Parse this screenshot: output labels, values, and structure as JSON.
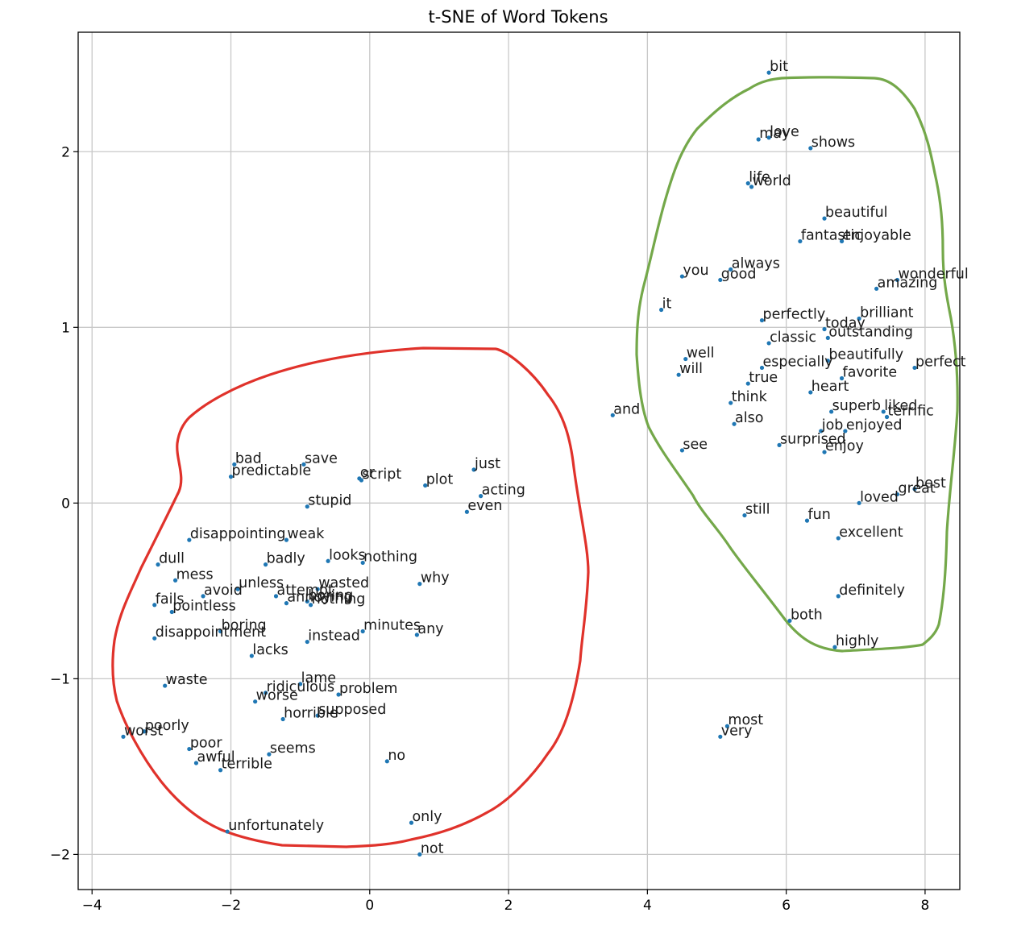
{
  "chart_data": {
    "type": "scatter",
    "title": "t-SNE of Word Tokens",
    "xlabel": "",
    "ylabel": "",
    "xlim": [
      -4.2,
      8.5
    ],
    "ylim": [
      -2.2,
      2.68
    ],
    "xticks": [
      -4,
      -2,
      0,
      2,
      4,
      6,
      8
    ],
    "yticks": [
      -2,
      -1,
      0,
      1,
      2
    ],
    "xtick_labels": [
      "−4",
      "−2",
      "0",
      "2",
      "4",
      "6",
      "8"
    ],
    "ytick_labels": [
      "−2",
      "−1",
      "0",
      "1",
      "2"
    ],
    "grid": true,
    "point_color": "#1f77b4",
    "annotations": [
      {
        "type": "freehand-loop",
        "color": "#e0322b",
        "encloses": "negative words"
      },
      {
        "type": "freehand-loop",
        "color": "#74a84a",
        "encloses": "positive words"
      }
    ],
    "points": [
      {
        "label": "bit",
        "x": 5.75,
        "y": 2.45
      },
      {
        "label": "love",
        "x": 5.75,
        "y": 2.08
      },
      {
        "label": "may",
        "x": 5.6,
        "y": 2.07
      },
      {
        "label": "shows",
        "x": 6.35,
        "y": 2.02
      },
      {
        "label": "life",
        "x": 5.45,
        "y": 1.82
      },
      {
        "label": "world",
        "x": 5.5,
        "y": 1.8
      },
      {
        "label": "beautiful",
        "x": 6.55,
        "y": 1.62
      },
      {
        "label": "fantastic",
        "x": 6.2,
        "y": 1.49
      },
      {
        "label": "enjoyable",
        "x": 6.8,
        "y": 1.49
      },
      {
        "label": "always",
        "x": 5.2,
        "y": 1.33
      },
      {
        "label": "you",
        "x": 4.5,
        "y": 1.29
      },
      {
        "label": "good",
        "x": 5.05,
        "y": 1.27
      },
      {
        "label": "wonderful",
        "x": 7.6,
        "y": 1.27
      },
      {
        "label": "amazing",
        "x": 7.3,
        "y": 1.22
      },
      {
        "label": "it",
        "x": 4.2,
        "y": 1.1
      },
      {
        "label": "brilliant",
        "x": 7.05,
        "y": 1.05
      },
      {
        "label": "perfectly",
        "x": 5.65,
        "y": 1.04
      },
      {
        "label": "today",
        "x": 6.55,
        "y": 0.99
      },
      {
        "label": "outstanding",
        "x": 6.6,
        "y": 0.94
      },
      {
        "label": "classic",
        "x": 5.75,
        "y": 0.91
      },
      {
        "label": "well",
        "x": 4.55,
        "y": 0.82
      },
      {
        "label": "beautifully",
        "x": 6.6,
        "y": 0.81
      },
      {
        "label": "especially",
        "x": 5.65,
        "y": 0.77
      },
      {
        "label": "perfect",
        "x": 7.85,
        "y": 0.77
      },
      {
        "label": "will",
        "x": 4.45,
        "y": 0.73
      },
      {
        "label": "favorite",
        "x": 6.8,
        "y": 0.71
      },
      {
        "label": "true",
        "x": 5.45,
        "y": 0.68
      },
      {
        "label": "heart",
        "x": 6.35,
        "y": 0.63
      },
      {
        "label": "think",
        "x": 5.2,
        "y": 0.57
      },
      {
        "label": "and",
        "x": 3.5,
        "y": 0.5
      },
      {
        "label": "superb",
        "x": 6.65,
        "y": 0.52
      },
      {
        "label": "liked",
        "x": 7.4,
        "y": 0.52
      },
      {
        "label": "terrific",
        "x": 7.45,
        "y": 0.49
      },
      {
        "label": "also",
        "x": 5.25,
        "y": 0.45
      },
      {
        "label": "job",
        "x": 6.5,
        "y": 0.41
      },
      {
        "label": "enjoyed",
        "x": 6.85,
        "y": 0.41
      },
      {
        "label": "surprised",
        "x": 5.9,
        "y": 0.33
      },
      {
        "label": "enjoy",
        "x": 6.55,
        "y": 0.29
      },
      {
        "label": "see",
        "x": 4.5,
        "y": 0.3
      },
      {
        "label": "bad",
        "x": -1.95,
        "y": 0.22
      },
      {
        "label": "save",
        "x": -0.95,
        "y": 0.22
      },
      {
        "label": "just",
        "x": 1.5,
        "y": 0.19
      },
      {
        "label": "predictable",
        "x": -2.0,
        "y": 0.15
      },
      {
        "label": "or",
        "x": -0.15,
        "y": 0.14
      },
      {
        "label": "script",
        "x": -0.12,
        "y": 0.13
      },
      {
        "label": "plot",
        "x": 0.8,
        "y": 0.1
      },
      {
        "label": "best",
        "x": 7.85,
        "y": 0.08
      },
      {
        "label": "great",
        "x": 7.6,
        "y": 0.05
      },
      {
        "label": "acting",
        "x": 1.6,
        "y": 0.04
      },
      {
        "label": "loved",
        "x": 7.05,
        "y": 0.0
      },
      {
        "label": "stupid",
        "x": -0.9,
        "y": -0.02
      },
      {
        "label": "even",
        "x": 1.4,
        "y": -0.05
      },
      {
        "label": "still",
        "x": 5.4,
        "y": -0.07
      },
      {
        "label": "fun",
        "x": 6.3,
        "y": -0.1
      },
      {
        "label": "disappointing",
        "x": -2.6,
        "y": -0.21
      },
      {
        "label": "weak",
        "x": -1.2,
        "y": -0.21
      },
      {
        "label": "excellent",
        "x": 6.75,
        "y": -0.2
      },
      {
        "label": "dull",
        "x": -3.05,
        "y": -0.35
      },
      {
        "label": "badly",
        "x": -1.5,
        "y": -0.35
      },
      {
        "label": "looks",
        "x": -0.6,
        "y": -0.33
      },
      {
        "label": "nothing",
        "x": -0.1,
        "y": -0.34
      },
      {
        "label": "mess",
        "x": -2.8,
        "y": -0.44
      },
      {
        "label": "why",
        "x": 0.72,
        "y": -0.46
      },
      {
        "label": "unless",
        "x": -1.9,
        "y": -0.49
      },
      {
        "label": "wasted",
        "x": -0.75,
        "y": -0.49
      },
      {
        "label": "avoid",
        "x": -2.4,
        "y": -0.53
      },
      {
        "label": "attempt",
        "x": -1.35,
        "y": -0.53
      },
      {
        "label": "annoying",
        "x": -1.2,
        "y": -0.57
      },
      {
        "label": "boring",
        "x": -0.9,
        "y": -0.56
      },
      {
        "label": "fails",
        "x": -3.1,
        "y": -0.58
      },
      {
        "label": "nothing",
        "x": -0.85,
        "y": -0.58
      },
      {
        "label": "definitely",
        "x": 6.75,
        "y": -0.53
      },
      {
        "label": "pointless",
        "x": -2.85,
        "y": -0.62
      },
      {
        "label": "boring",
        "x": -2.15,
        "y": -0.73
      },
      {
        "label": "minutes",
        "x": -0.1,
        "y": -0.73
      },
      {
        "label": "any",
        "x": 0.68,
        "y": -0.75
      },
      {
        "label": "both",
        "x": 6.05,
        "y": -0.67
      },
      {
        "label": "disappointment",
        "x": -3.1,
        "y": -0.77
      },
      {
        "label": "instead",
        "x": -0.9,
        "y": -0.79
      },
      {
        "label": "highly",
        "x": 6.7,
        "y": -0.82
      },
      {
        "label": "lacks",
        "x": -1.7,
        "y": -0.87
      },
      {
        "label": "waste",
        "x": -2.95,
        "y": -1.04
      },
      {
        "label": "lame",
        "x": -1.0,
        "y": -1.03
      },
      {
        "label": "ridiculous",
        "x": -1.5,
        "y": -1.08
      },
      {
        "label": "problem",
        "x": -0.45,
        "y": -1.09
      },
      {
        "label": "worse",
        "x": -1.65,
        "y": -1.13
      },
      {
        "label": "horrible",
        "x": -1.25,
        "y": -1.23
      },
      {
        "label": "supposed",
        "x": -0.75,
        "y": -1.21
      },
      {
        "label": "most",
        "x": 5.15,
        "y": -1.27
      },
      {
        "label": "poorly",
        "x": -3.25,
        "y": -1.3
      },
      {
        "label": "worst",
        "x": -3.55,
        "y": -1.33
      },
      {
        "label": "very",
        "x": 5.05,
        "y": -1.33
      },
      {
        "label": "poor",
        "x": -2.6,
        "y": -1.4
      },
      {
        "label": "seems",
        "x": -1.45,
        "y": -1.43
      },
      {
        "label": "no",
        "x": 0.25,
        "y": -1.47
      },
      {
        "label": "awful",
        "x": -2.5,
        "y": -1.48
      },
      {
        "label": "terrible",
        "x": -2.15,
        "y": -1.52
      },
      {
        "label": "unfortunately",
        "x": -2.05,
        "y": -1.87
      },
      {
        "label": "only",
        "x": 0.6,
        "y": -1.82
      },
      {
        "label": "not",
        "x": 0.72,
        "y": -2.0
      }
    ]
  }
}
